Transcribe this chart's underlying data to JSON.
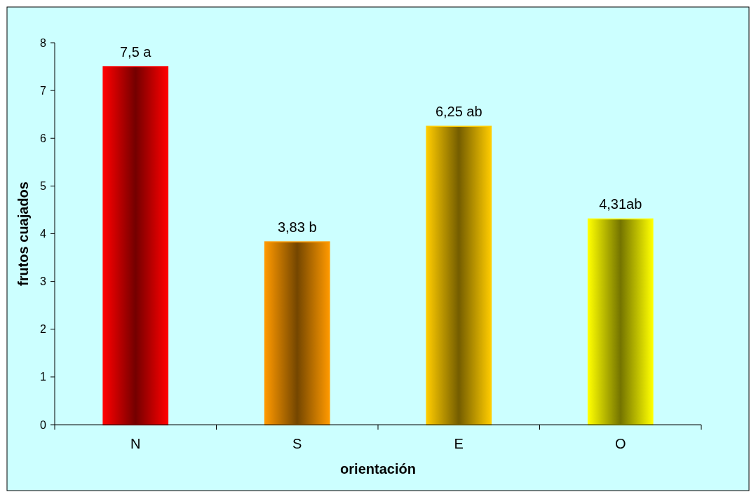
{
  "chart_data": {
    "type": "bar",
    "xlabel": "orientación",
    "ylabel": "frutos cuajados",
    "categories": [
      "N",
      "S",
      "E",
      "O"
    ],
    "values": [
      7.5,
      3.83,
      6.25,
      4.31
    ],
    "colors": [
      "#ff0000",
      "#ff9900",
      "#ffcc00",
      "#ffff00"
    ],
    "value_labels": [
      "7,5 a",
      "3,83 b",
      "6,25 ab",
      "4,31ab"
    ],
    "ylim": [
      0,
      8
    ],
    "yticks": [
      0,
      1,
      2,
      3,
      4,
      5,
      6,
      7,
      8
    ],
    "grid": false
  }
}
